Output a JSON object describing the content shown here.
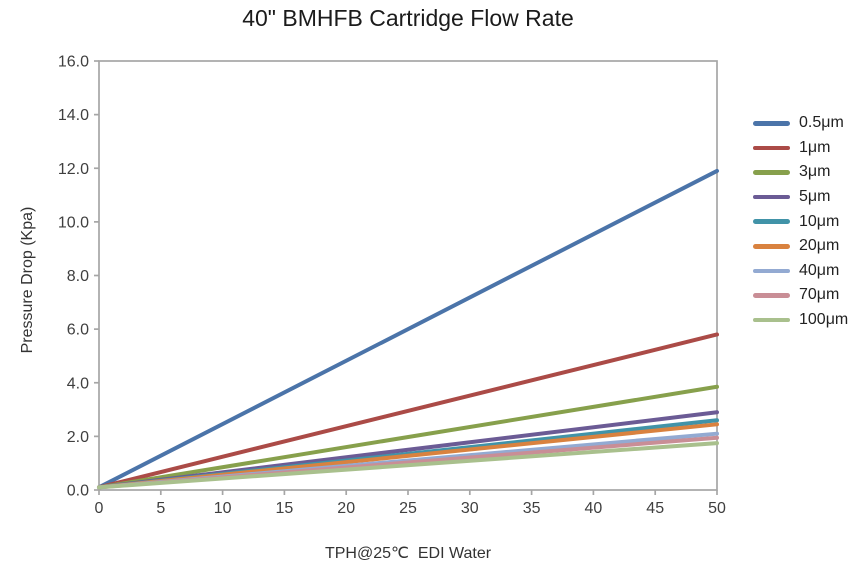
{
  "chart_data": {
    "type": "line",
    "title": "40\" BMHFB Cartridge Flow Rate",
    "xlabel": "TPH@25℃  EDI Water",
    "ylabel": "Pressure Drop (Kpa)",
    "xlim": [
      0,
      50
    ],
    "ylim": [
      0,
      16
    ],
    "x_ticks": [
      0,
      5,
      10,
      15,
      20,
      25,
      30,
      35,
      40,
      45,
      50
    ],
    "y_ticks": [
      0,
      2,
      4,
      6,
      8,
      10,
      12,
      14,
      16
    ],
    "y_tick_decimals": 1,
    "grid": false,
    "legend_position": "right",
    "x": [
      0,
      50
    ],
    "series": [
      {
        "name": "0.5μm",
        "color": "#4B74A9",
        "values": [
          0.1,
          11.9
        ]
      },
      {
        "name": "1μm",
        "color": "#AB4B47",
        "values": [
          0.1,
          5.8
        ]
      },
      {
        "name": "3μm",
        "color": "#87A04C",
        "values": [
          0.1,
          3.85
        ]
      },
      {
        "name": "5μm",
        "color": "#6B5B95",
        "values": [
          0.1,
          2.9
        ]
      },
      {
        "name": "10μm",
        "color": "#4193A8",
        "values": [
          0.1,
          2.6
        ]
      },
      {
        "name": "20μm",
        "color": "#D9823F",
        "values": [
          0.1,
          2.45
        ]
      },
      {
        "name": "40μm",
        "color": "#93AAD2",
        "values": [
          0.1,
          2.1
        ]
      },
      {
        "name": "70μm",
        "color": "#C98E96",
        "values": [
          0.1,
          1.95
        ]
      },
      {
        "name": "100μm",
        "color": "#A9C08D",
        "values": [
          0.1,
          1.75
        ]
      }
    ],
    "axis_color": "#A6A6A6",
    "tick_label_color": "#3F3F3F"
  }
}
